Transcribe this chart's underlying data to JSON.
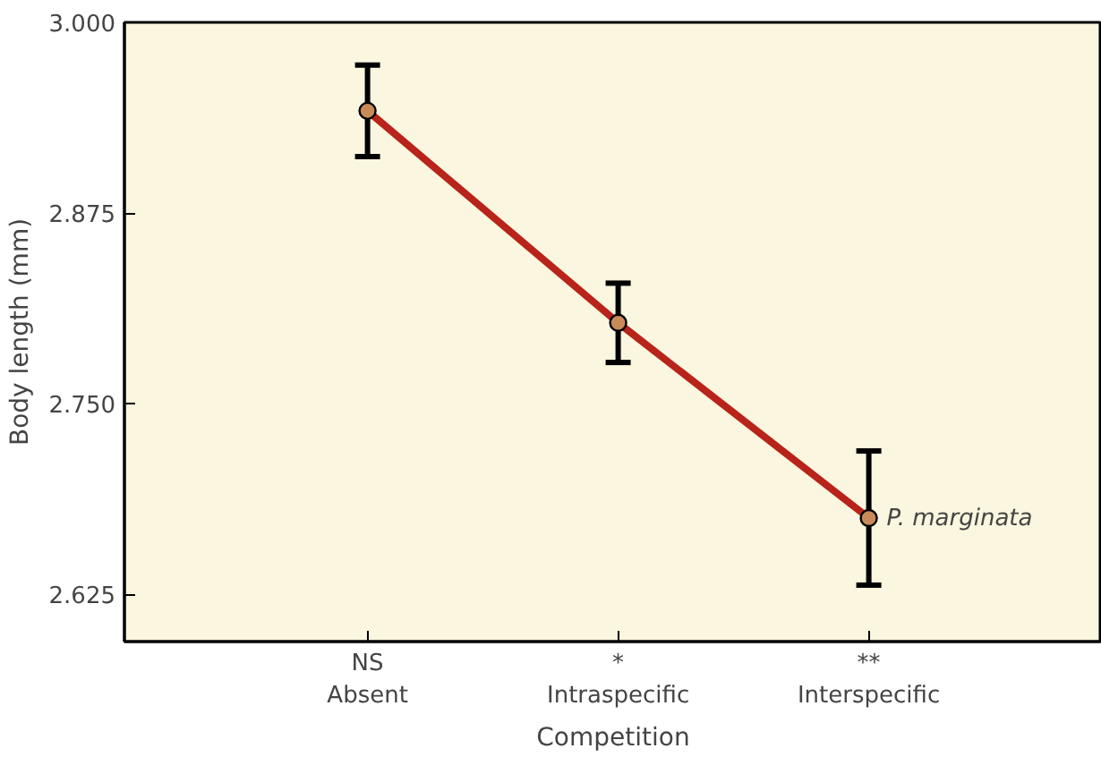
{
  "chart_data": {
    "type": "line",
    "xlabel": "Competition",
    "ylabel": "Body length (mm)",
    "categories": [
      "Absent",
      "Intraspecific",
      "Interspecific"
    ],
    "series": [
      {
        "name": "P. marginata",
        "color": "#b8231a",
        "values": [
          2.942,
          2.803,
          2.675
        ],
        "errors": [
          0.03,
          0.026,
          0.044
        ]
      }
    ],
    "annotations": [
      "NS",
      "*",
      "**"
    ],
    "ylim": [
      2.594,
      3.0
    ],
    "yticks": [
      {
        "value": 3.0,
        "label": "3.000"
      },
      2.875,
      {
        "value": 2.75,
        "label": "2.750"
      },
      2.625
    ],
    "marker": "circle",
    "line_style": "solid",
    "grid": false,
    "legend": false
  }
}
